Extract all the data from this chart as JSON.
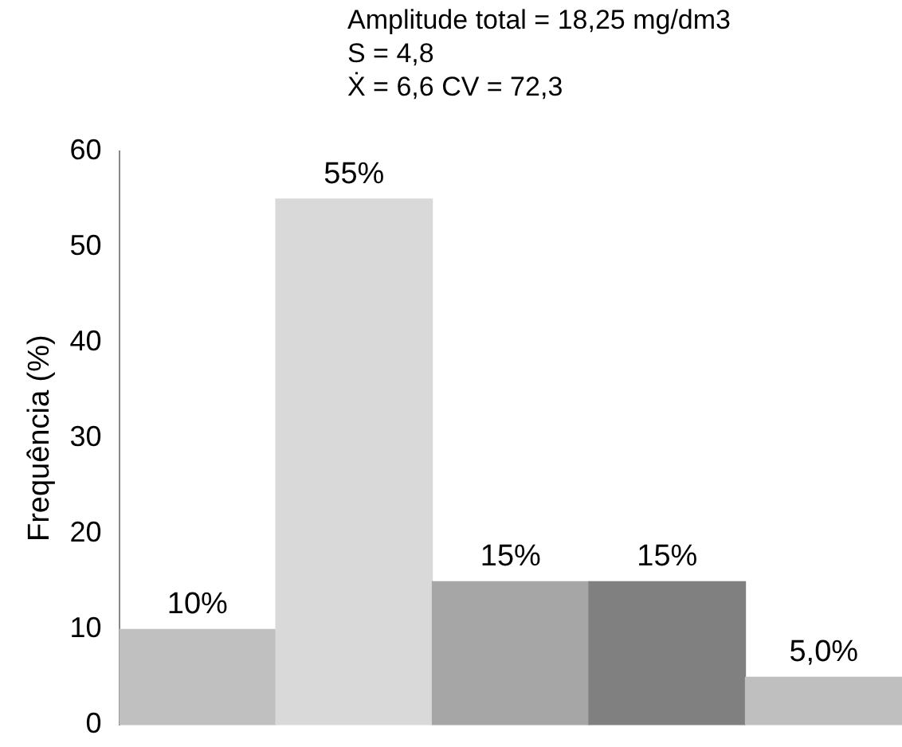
{
  "chart_data": {
    "type": "bar",
    "ylabel": "Frequência (%)",
    "annotations": [
      "Amplitude total = 18,25 mg/dm3",
      "S = 4,8",
      "Ẋ = 6,6  CV = 72,3"
    ],
    "categories": [
      null,
      null,
      null,
      null,
      null
    ],
    "values": [
      10,
      55,
      15,
      15,
      5
    ],
    "colors": [
      "#c0c0c0",
      "#d9d9d9",
      "#a6a6a6",
      "#808080",
      "#bfbfbf"
    ],
    "value_labels": [
      "10%",
      "55%",
      "15%",
      "15%",
      "5,0%"
    ],
    "ylim": [
      0,
      60
    ],
    "yticks": [
      0,
      10,
      20,
      30,
      40,
      50,
      60
    ]
  }
}
